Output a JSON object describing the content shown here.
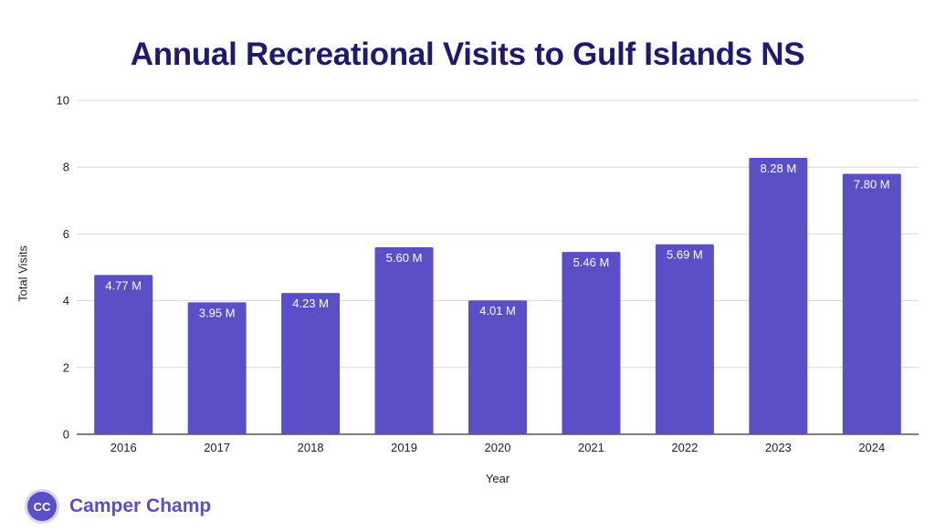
{
  "chart_data": {
    "type": "bar",
    "title": "Annual Recreational Visits to Gulf Islands NS",
    "xlabel": "Year",
    "ylabel": "Total Visits",
    "categories": [
      "2016",
      "2017",
      "2018",
      "2019",
      "2020",
      "2021",
      "2022",
      "2023",
      "2024"
    ],
    "values": [
      4.77,
      3.95,
      4.23,
      5.6,
      4.01,
      5.46,
      5.69,
      8.28,
      7.8
    ],
    "data_labels": [
      "4.77 M",
      "3.95 M",
      "4.23 M",
      "5.60 M",
      "4.01 M",
      "5.46 M",
      "5.69 M",
      "8.28 M",
      "7.80 M"
    ],
    "ylim": [
      0,
      10
    ],
    "yticks": [
      "0",
      "2",
      "4",
      "6",
      "8",
      "10"
    ],
    "grid": true,
    "legend": "none",
    "bar_color": "#5b4fc8"
  },
  "brand": {
    "logo_text": "CC",
    "name": "Camper Champ",
    "color": "#5b4fc8"
  }
}
